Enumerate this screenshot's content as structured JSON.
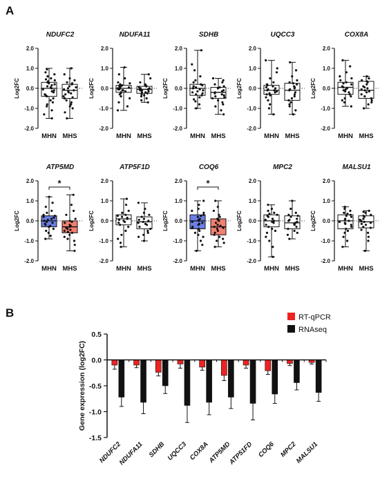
{
  "panels": {
    "a_label": "A",
    "b_label": "B"
  },
  "colors": {
    "mhn_highlight": "#6b7fe6",
    "mhs_highlight": "#f08070",
    "rtqpcr": "#ee2222",
    "rnaseq": "#111111"
  },
  "chart_data": [
    {
      "panel": "A",
      "type": "box",
      "ylabel": "Log2FC",
      "ylim": [
        -2.0,
        2.0
      ],
      "yticks": [
        "2.0",
        "1.0",
        "0.0",
        "-1.0",
        "-2.0"
      ],
      "groups": [
        "MHN",
        "MHS"
      ],
      "significance_marker": "*",
      "plots": [
        {
          "gene": "NDUFC2",
          "highlight": false,
          "significant": false,
          "boxes": [
            {
              "group": "MHN",
              "min": -1.5,
              "q1": -0.4,
              "median": 0.0,
              "q3": 0.3,
              "max": 1.0,
              "points": [
                0.95,
                0.8,
                0.7,
                0.6,
                0.5,
                0.45,
                0.4,
                0.35,
                0.3,
                0.25,
                0.2,
                0.15,
                0.1,
                0.05,
                0.0,
                -0.05,
                -0.1,
                -0.15,
                -0.2,
                -0.3,
                -0.35,
                -0.4,
                -0.5,
                -0.6,
                -0.7,
                -0.8,
                -0.9,
                -1.1,
                -1.3,
                -1.5
              ]
            },
            {
              "group": "MHS",
              "min": -1.5,
              "q1": -0.5,
              "median": -0.1,
              "q3": 0.2,
              "max": 1.0,
              "points": [
                1.0,
                0.7,
                0.5,
                0.4,
                0.3,
                0.25,
                0.2,
                0.1,
                0.05,
                0.0,
                -0.05,
                -0.1,
                -0.15,
                -0.2,
                -0.25,
                -0.3,
                -0.4,
                -0.45,
                -0.5,
                -0.6,
                -0.7,
                -0.8,
                -0.9,
                -1.0,
                -1.2,
                -1.5
              ]
            }
          ]
        },
        {
          "gene": "NDUFA11",
          "highlight": false,
          "significant": false,
          "boxes": [
            {
              "group": "MHN",
              "min": -1.1,
              "q1": -0.2,
              "median": 0.0,
              "q3": 0.15,
              "max": 1.05,
              "points": [
                1.05,
                0.7,
                0.5,
                0.3,
                0.25,
                0.2,
                0.15,
                0.1,
                0.1,
                0.05,
                0.0,
                0.0,
                -0.05,
                -0.05,
                -0.1,
                -0.1,
                -0.15,
                -0.2,
                -0.25,
                -0.3,
                -0.4,
                -0.5,
                -0.7,
                -0.9,
                -1.1
              ]
            },
            {
              "group": "MHS",
              "min": -0.7,
              "q1": -0.25,
              "median": -0.05,
              "q3": 0.1,
              "max": 0.7,
              "points": [
                0.7,
                0.5,
                0.3,
                0.2,
                0.15,
                0.1,
                0.05,
                0.0,
                0.0,
                -0.05,
                -0.05,
                -0.1,
                -0.1,
                -0.15,
                -0.2,
                -0.2,
                -0.25,
                -0.3,
                -0.35,
                -0.4,
                -0.5,
                -0.6,
                -0.7
              ]
            }
          ]
        },
        {
          "gene": "SDHB",
          "highlight": false,
          "significant": false,
          "boxes": [
            {
              "group": "MHN",
              "min": -1.0,
              "q1": -0.35,
              "median": 0.0,
              "q3": 0.2,
              "max": 1.9,
              "points": [
                1.9,
                1.2,
                0.9,
                0.6,
                0.4,
                0.3,
                0.2,
                0.15,
                0.1,
                0.05,
                0.0,
                -0.05,
                -0.1,
                -0.15,
                -0.2,
                -0.25,
                -0.3,
                -0.35,
                -0.45,
                -0.55,
                -0.65,
                -0.8,
                -1.0
              ]
            },
            {
              "group": "MHS",
              "min": -1.3,
              "q1": -0.5,
              "median": -0.2,
              "q3": 0.05,
              "max": 0.5,
              "points": [
                0.5,
                0.4,
                0.3,
                0.2,
                0.1,
                0.05,
                0.0,
                -0.1,
                -0.15,
                -0.2,
                -0.25,
                -0.3,
                -0.35,
                -0.4,
                -0.45,
                -0.5,
                -0.6,
                -0.7,
                -0.8,
                -0.9,
                -1.1,
                -1.3
              ]
            }
          ]
        },
        {
          "gene": "UQCC3",
          "highlight": false,
          "significant": false,
          "boxes": [
            {
              "group": "MHN",
              "min": -1.3,
              "q1": -0.3,
              "median": -0.1,
              "q3": 0.15,
              "max": 1.4,
              "points": [
                1.4,
                1.0,
                0.8,
                0.5,
                0.3,
                0.2,
                0.15,
                0.1,
                0.05,
                0.0,
                -0.05,
                -0.1,
                -0.1,
                -0.15,
                -0.2,
                -0.25,
                -0.3,
                -0.35,
                -0.45,
                -0.6,
                -0.8,
                -1.0,
                -1.3
              ]
            },
            {
              "group": "MHS",
              "min": -1.3,
              "q1": -0.6,
              "median": -0.1,
              "q3": 0.25,
              "max": 1.3,
              "points": [
                1.3,
                0.9,
                0.6,
                0.4,
                0.3,
                0.25,
                0.2,
                0.1,
                0.05,
                0.0,
                -0.05,
                -0.1,
                -0.2,
                -0.3,
                -0.4,
                -0.5,
                -0.6,
                -0.7,
                -0.8,
                -0.9,
                -1.1,
                -1.3
              ]
            }
          ]
        },
        {
          "gene": "COX8A",
          "highlight": false,
          "significant": false,
          "boxes": [
            {
              "group": "MHN",
              "min": -0.9,
              "q1": -0.3,
              "median": 0.05,
              "q3": 0.3,
              "max": 1.4,
              "points": [
                1.4,
                1.1,
                0.8,
                0.6,
                0.5,
                0.4,
                0.3,
                0.25,
                0.2,
                0.1,
                0.05,
                0.0,
                -0.05,
                -0.1,
                -0.15,
                -0.2,
                -0.3,
                -0.4,
                -0.5,
                -0.6,
                -0.7,
                -0.9
              ]
            },
            {
              "group": "MHS",
              "min": -1.0,
              "q1": -0.5,
              "median": -0.1,
              "q3": 0.35,
              "max": 0.6,
              "points": [
                0.6,
                0.5,
                0.4,
                0.35,
                0.3,
                0.2,
                0.1,
                0.05,
                0.0,
                -0.05,
                -0.1,
                -0.15,
                -0.2,
                -0.3,
                -0.4,
                -0.5,
                -0.6,
                -0.7,
                -0.8,
                -1.0
              ]
            }
          ]
        },
        {
          "gene": "ATP5MD",
          "highlight": true,
          "significant": true,
          "boxes": [
            {
              "group": "MHN",
              "min": -0.9,
              "q1": -0.3,
              "median": 0.0,
              "q3": 0.25,
              "max": 1.2,
              "points": [
                1.2,
                0.9,
                0.7,
                0.5,
                0.4,
                0.3,
                0.25,
                0.2,
                0.15,
                0.1,
                0.05,
                0.0,
                -0.05,
                -0.1,
                -0.15,
                -0.2,
                -0.25,
                -0.3,
                -0.4,
                -0.5,
                -0.6,
                -0.75,
                -0.9
              ]
            },
            {
              "group": "MHS",
              "min": -1.5,
              "q1": -0.6,
              "median": -0.3,
              "q3": 0.0,
              "max": 1.3,
              "points": [
                1.3,
                0.8,
                0.5,
                0.3,
                0.1,
                0.0,
                -0.05,
                -0.1,
                -0.2,
                -0.25,
                -0.3,
                -0.35,
                -0.4,
                -0.45,
                -0.5,
                -0.55,
                -0.6,
                -0.7,
                -0.8,
                -0.9,
                -1.0,
                -1.2,
                -1.5
              ]
            }
          ]
        },
        {
          "gene": "ATP5F1D",
          "highlight": false,
          "significant": false,
          "boxes": [
            {
              "group": "MHN",
              "min": -1.3,
              "q1": -0.2,
              "median": 0.1,
              "q3": 0.3,
              "max": 1.1,
              "points": [
                1.1,
                0.8,
                0.5,
                0.4,
                0.3,
                0.25,
                0.2,
                0.15,
                0.1,
                0.05,
                0.0,
                -0.05,
                -0.1,
                -0.2,
                -0.3,
                -0.5,
                -0.7,
                -0.9,
                -1.1,
                -1.3
              ]
            },
            {
              "group": "MHS",
              "min": -1.0,
              "q1": -0.4,
              "median": -0.05,
              "q3": 0.2,
              "max": 0.9,
              "points": [
                0.9,
                0.6,
                0.4,
                0.3,
                0.2,
                0.1,
                0.05,
                0.0,
                -0.05,
                -0.1,
                -0.15,
                -0.2,
                -0.3,
                -0.4,
                -0.5,
                -0.6,
                -0.7,
                -0.8,
                -1.0
              ]
            }
          ]
        },
        {
          "gene": "COQ6",
          "highlight": true,
          "significant": true,
          "boxes": [
            {
              "group": "MHN",
              "min": -1.5,
              "q1": -0.4,
              "median": 0.0,
              "q3": 0.3,
              "max": 1.0,
              "points": [
                1.0,
                0.8,
                0.6,
                0.5,
                0.4,
                0.3,
                0.25,
                0.2,
                0.1,
                0.05,
                0.0,
                -0.05,
                -0.1,
                -0.15,
                -0.2,
                -0.3,
                -0.35,
                -0.4,
                -0.5,
                -0.6,
                -0.7,
                -0.8,
                -1.0,
                -1.2,
                -1.5
              ]
            },
            {
              "group": "MHS",
              "min": -1.3,
              "q1": -0.7,
              "median": -0.3,
              "q3": 0.1,
              "max": 1.0,
              "points": [
                1.0,
                0.7,
                0.5,
                0.3,
                0.2,
                0.1,
                0.05,
                0.0,
                -0.1,
                -0.2,
                -0.25,
                -0.3,
                -0.35,
                -0.4,
                -0.5,
                -0.6,
                -0.7,
                -0.8,
                -0.9,
                -1.0,
                -1.1,
                -1.3
              ]
            }
          ]
        },
        {
          "gene": "MPC2",
          "highlight": false,
          "significant": false,
          "boxes": [
            {
              "group": "MHN",
              "min": -1.8,
              "q1": -0.3,
              "median": 0.0,
              "q3": 0.3,
              "max": 0.8,
              "points": [
                0.8,
                0.6,
                0.5,
                0.4,
                0.35,
                0.3,
                0.25,
                0.2,
                0.1,
                0.05,
                0.0,
                -0.05,
                -0.1,
                -0.2,
                -0.3,
                -0.4,
                -0.5,
                -0.6,
                -0.8,
                -1.0,
                -1.3,
                -1.8
              ]
            },
            {
              "group": "MHS",
              "min": -0.9,
              "q1": -0.4,
              "median": -0.1,
              "q3": 0.25,
              "max": 1.0,
              "points": [
                1.0,
                0.6,
                0.4,
                0.3,
                0.25,
                0.2,
                0.1,
                0.05,
                0.0,
                -0.05,
                -0.1,
                -0.15,
                -0.2,
                -0.3,
                -0.4,
                -0.5,
                -0.6,
                -0.7,
                -0.9
              ]
            }
          ]
        },
        {
          "gene": "MALSU1",
          "highlight": false,
          "significant": false,
          "boxes": [
            {
              "group": "MHN",
              "min": -1.3,
              "q1": -0.4,
              "median": 0.0,
              "q3": 0.3,
              "max": 0.7,
              "points": [
                0.7,
                0.6,
                0.5,
                0.4,
                0.35,
                0.3,
                0.25,
                0.2,
                0.1,
                0.05,
                0.0,
                -0.05,
                -0.1,
                -0.15,
                -0.2,
                -0.3,
                -0.4,
                -0.5,
                -0.6,
                -0.8,
                -1.0,
                -1.3
              ]
            },
            {
              "group": "MHS",
              "min": -1.5,
              "q1": -0.35,
              "median": -0.05,
              "q3": 0.25,
              "max": 0.5,
              "points": [
                0.5,
                0.45,
                0.4,
                0.3,
                0.25,
                0.2,
                0.1,
                0.05,
                0.0,
                -0.05,
                -0.1,
                -0.15,
                -0.2,
                -0.3,
                -0.35,
                -0.45,
                -0.6,
                -0.8,
                -1.0,
                -1.5
              ]
            }
          ]
        }
      ]
    },
    {
      "panel": "B",
      "type": "bar",
      "ylabel": "Gene expression (log2FC)",
      "ylim": [
        -1.5,
        0.5
      ],
      "yticks": [
        "0.5",
        "0.0",
        "-0.5",
        "-1.0",
        "-1.5"
      ],
      "categories": [
        "NDUFC2",
        "NDUFA11",
        "SDHB",
        "UQCC3",
        "COX8A",
        "ATP5MD",
        "ATP51FD",
        "COQ6",
        "MPC2",
        "MALSU1"
      ],
      "legend_position": "top-right",
      "series": [
        {
          "name": "RT-qPCR",
          "values": [
            -0.1,
            -0.1,
            -0.24,
            -0.08,
            -0.14,
            -0.3,
            -0.1,
            -0.21,
            -0.07,
            -0.05
          ],
          "errors": [
            0.08,
            0.05,
            0.07,
            0.08,
            0.06,
            0.1,
            0.06,
            0.07,
            0.04,
            0.03
          ]
        },
        {
          "name": "RNAseq",
          "values": [
            -0.72,
            -0.82,
            -0.5,
            -0.88,
            -0.82,
            -0.72,
            -0.84,
            -0.66,
            -0.44,
            -0.63
          ],
          "errors": [
            0.18,
            0.22,
            0.15,
            0.33,
            0.24,
            0.22,
            0.32,
            0.18,
            0.14,
            0.17
          ]
        }
      ]
    }
  ]
}
